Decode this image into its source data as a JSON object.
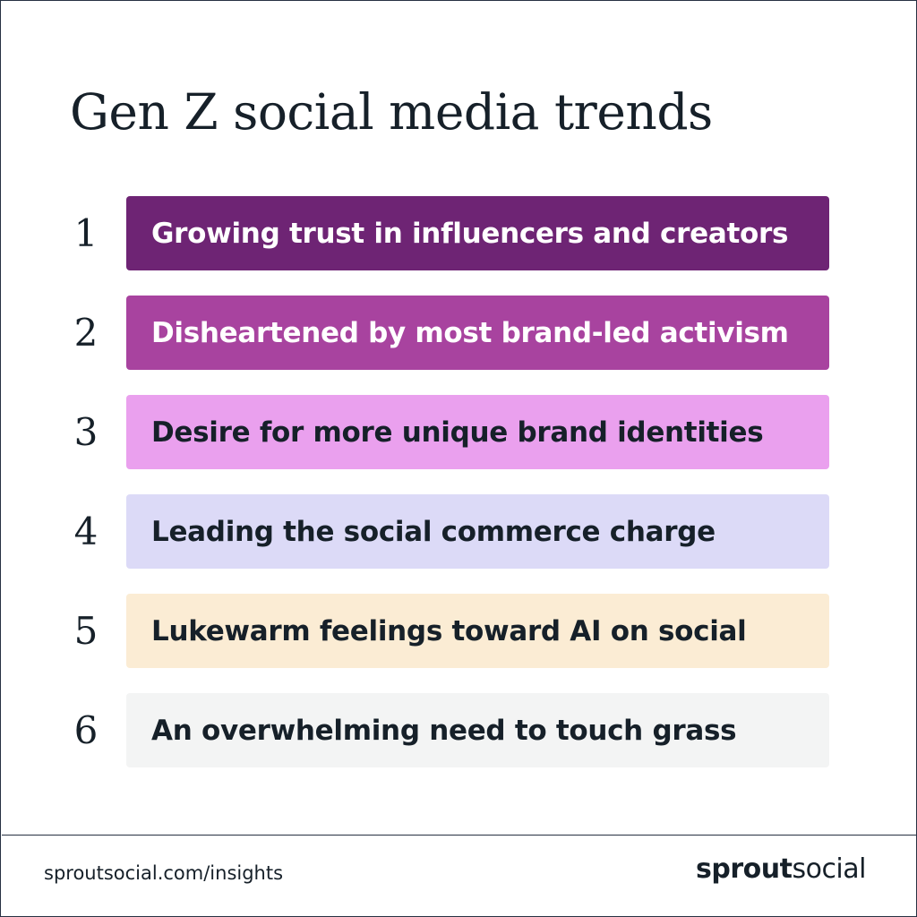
{
  "title": "Gen Z social media trends",
  "trends": [
    {
      "number": "1",
      "label": "Growing trust in influencers and creators",
      "bg": "#6e2474",
      "fg": "#ffffff"
    },
    {
      "number": "2",
      "label": "Disheartened by most brand-led activism",
      "bg": "#a8439f",
      "fg": "#ffffff"
    },
    {
      "number": "3",
      "label": "Desire for more unique brand identities",
      "bg": "#eaa0ee",
      "fg": "#162029"
    },
    {
      "number": "4",
      "label": "Leading the social commerce charge",
      "bg": "#dcdaf7",
      "fg": "#162029"
    },
    {
      "number": "5",
      "label": "Lukewarm feelings toward AI on social",
      "bg": "#fbecd4",
      "fg": "#162029"
    },
    {
      "number": "6",
      "label": "An overwhelming need to touch grass",
      "bg": "#f3f4f4",
      "fg": "#162029"
    }
  ],
  "footer": {
    "url": "sproutsocial.com/insights",
    "logo_bold": "sprout",
    "logo_light": "social"
  }
}
